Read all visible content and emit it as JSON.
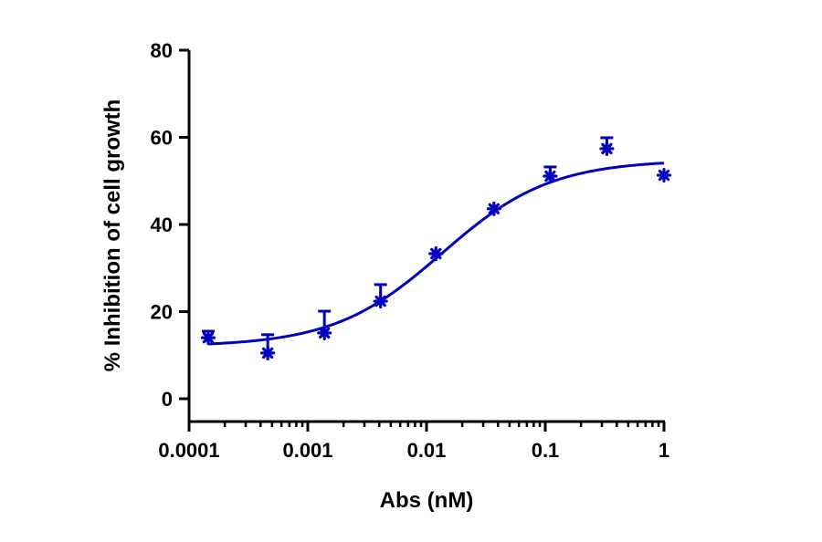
{
  "chart_data": {
    "type": "scatter",
    "title": "",
    "xlabel": "Abs (nM)",
    "ylabel": "% Inhibition of cell growth",
    "xscale": "log",
    "xlim": [
      0.0001,
      1
    ],
    "ylim": [
      -5,
      80
    ],
    "x_ticks": [
      0.0001,
      0.001,
      0.01,
      0.1,
      1
    ],
    "x_tick_labels": [
      "0.0001",
      "0.001",
      "0.01",
      "0.1",
      "1"
    ],
    "y_ticks": [
      0,
      20,
      40,
      60,
      80
    ],
    "y_tick_labels": [
      "0",
      "20",
      "40",
      "60",
      "80"
    ],
    "grid": false,
    "legend": null,
    "color": "#0000C0",
    "series": [
      {
        "name": "Abs",
        "marker": "asterisk",
        "points": [
          {
            "x": 0.000145,
            "y": 14.0,
            "err_upper": 1.5
          },
          {
            "x": 0.00046,
            "y": 10.5,
            "err_upper": 4.2
          },
          {
            "x": 0.00138,
            "y": 15.1,
            "err_upper": 5.0
          },
          {
            "x": 0.0041,
            "y": 22.4,
            "err_upper": 3.8
          },
          {
            "x": 0.012,
            "y": 33.3,
            "err_upper": 0.5
          },
          {
            "x": 0.037,
            "y": 43.6,
            "err_upper": 0.5
          },
          {
            "x": 0.11,
            "y": 51.1,
            "err_upper": 2.1
          },
          {
            "x": 0.33,
            "y": 57.4,
            "err_upper": 2.5
          },
          {
            "x": 1.0,
            "y": 51.3,
            "err_upper": 0.5
          }
        ]
      }
    ],
    "fit": {
      "type": "four-parameter logistic",
      "bottom": 12.0,
      "top": 54.8,
      "ec50": 0.0135,
      "hill_slope": 0.95,
      "x_range": [
        0.000145,
        1.0
      ]
    }
  }
}
